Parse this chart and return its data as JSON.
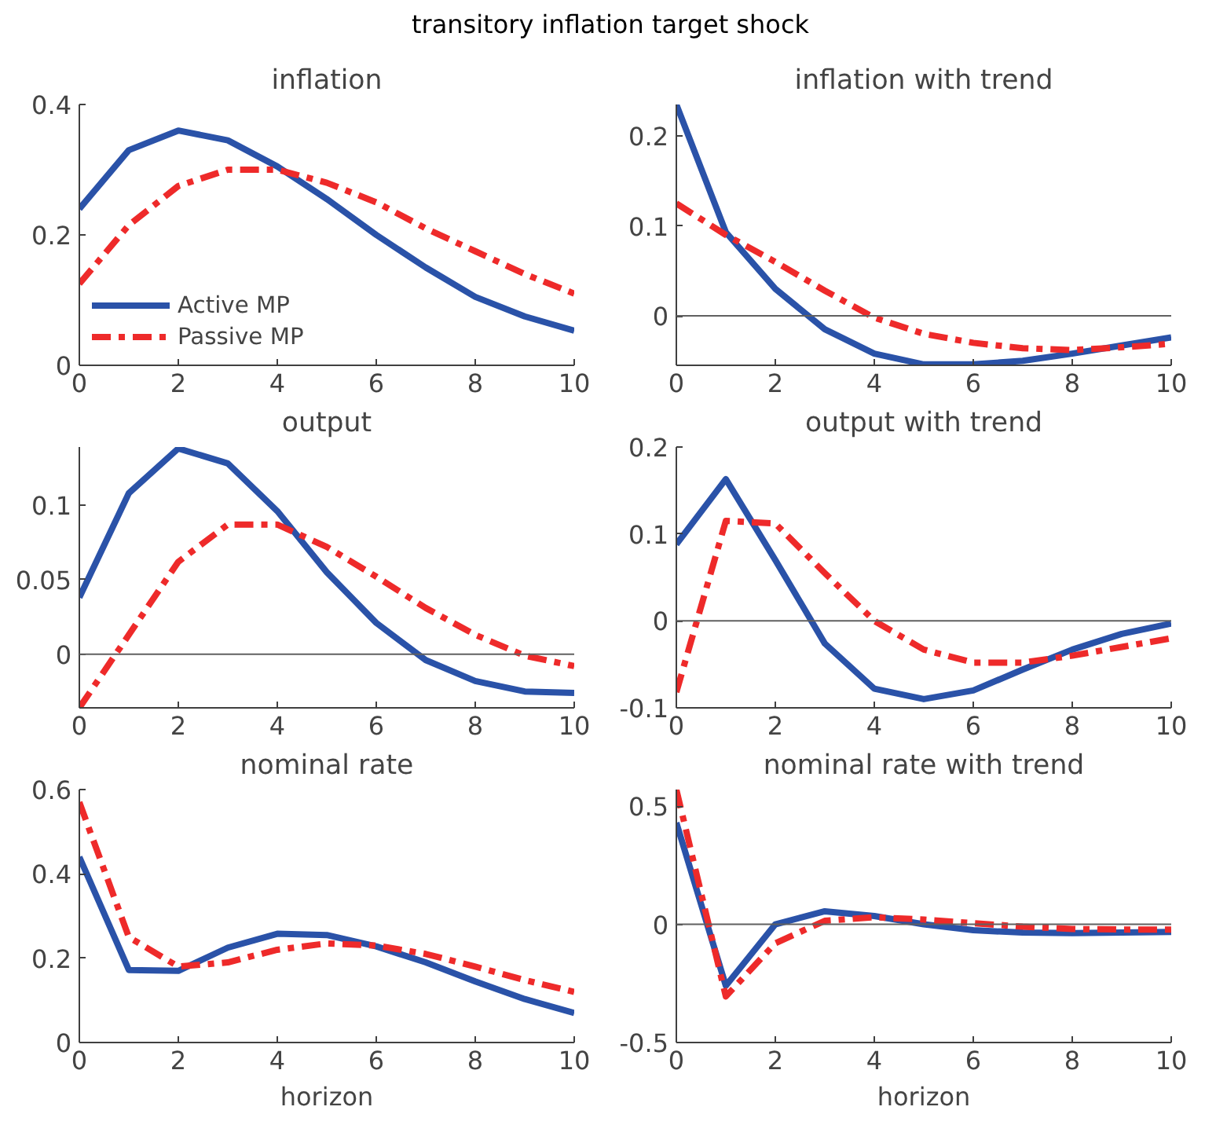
{
  "chart_data": [
    {
      "type": "line",
      "title": "inflation",
      "annotations": [
        "transitory inflation target shock"
      ],
      "x": [
        0,
        1,
        2,
        3,
        4,
        5,
        6,
        7,
        8,
        9,
        10
      ],
      "xlim": [
        0,
        10
      ],
      "xticks": [
        0,
        2,
        4,
        6,
        8,
        10
      ],
      "ylim": [
        0,
        0.4
      ],
      "yticks": [
        0,
        0.2,
        0.4
      ],
      "grid": false,
      "legend": "bottom left",
      "series": [
        {
          "name": "Active MP",
          "color": "#2a52a8",
          "line_style": "solid",
          "values": [
            0.24,
            0.33,
            0.36,
            0.345,
            0.305,
            0.255,
            0.2,
            0.15,
            0.105,
            0.075,
            0.053
          ]
        },
        {
          "name": "Passive MP",
          "color": "#ee2a2a",
          "line_style": "dashed",
          "values": [
            0.125,
            0.215,
            0.275,
            0.3,
            0.3,
            0.28,
            0.25,
            0.21,
            0.175,
            0.14,
            0.11
          ]
        }
      ]
    },
    {
      "type": "line",
      "title": "inflation with trend",
      "x": [
        0,
        1,
        2,
        3,
        4,
        5,
        6,
        7,
        8,
        9,
        10
      ],
      "xlim": [
        0,
        10
      ],
      "xticks": [
        0,
        2,
        4,
        6,
        8,
        10
      ],
      "ylim": [
        -0.055,
        0.235
      ],
      "yticks": [
        0,
        0.1,
        0.2
      ],
      "grid": false,
      "ref_lines": [
        {
          "axis": "y",
          "value": 0,
          "color": "#606060"
        }
      ],
      "series": [
        {
          "color": "#2a52a8",
          "line_style": "solid",
          "values": [
            0.235,
            0.093,
            0.03,
            -0.015,
            -0.042,
            -0.054,
            -0.054,
            -0.05,
            -0.042,
            -0.033,
            -0.024
          ]
        },
        {
          "color": "#ee2a2a",
          "line_style": "dashed",
          "values": [
            0.125,
            0.09,
            0.06,
            0.028,
            -0.002,
            -0.02,
            -0.03,
            -0.036,
            -0.038,
            -0.035,
            -0.031
          ]
        }
      ]
    },
    {
      "type": "line",
      "title": "output",
      "x": [
        0,
        1,
        2,
        3,
        4,
        5,
        6,
        7,
        8,
        9,
        10
      ],
      "xlim": [
        0,
        10
      ],
      "xticks": [
        0,
        2,
        4,
        6,
        8,
        10
      ],
      "ylim": [
        -0.036,
        0.139
      ],
      "yticks": [
        0,
        0.05,
        0.1
      ],
      "grid": false,
      "ref_lines": [
        {
          "axis": "y",
          "value": 0,
          "color": "#606060"
        }
      ],
      "series": [
        {
          "color": "#2a52a8",
          "line_style": "solid",
          "values": [
            0.038,
            0.108,
            0.138,
            0.128,
            0.096,
            0.055,
            0.021,
            -0.004,
            -0.018,
            -0.025,
            -0.026
          ]
        },
        {
          "color": "#ee2a2a",
          "line_style": "dashed",
          "values": [
            -0.036,
            0.013,
            0.062,
            0.087,
            0.087,
            0.072,
            0.052,
            0.031,
            0.013,
            -0.001,
            -0.008
          ]
        }
      ]
    },
    {
      "type": "line",
      "title": "output with trend",
      "x": [
        0,
        1,
        2,
        3,
        4,
        5,
        6,
        7,
        8,
        9,
        10
      ],
      "xlim": [
        0,
        10
      ],
      "xticks": [
        0,
        2,
        4,
        6,
        8,
        10
      ],
      "ylim": [
        -0.1,
        0.2
      ],
      "yticks": [
        -0.1,
        0,
        0.1,
        0.2
      ],
      "grid": false,
      "ref_lines": [
        {
          "axis": "y",
          "value": 0,
          "color": "#606060"
        }
      ],
      "series": [
        {
          "color": "#2a52a8",
          "line_style": "solid",
          "values": [
            0.088,
            0.163,
            0.07,
            -0.026,
            -0.078,
            -0.09,
            -0.08,
            -0.056,
            -0.033,
            -0.015,
            -0.003
          ]
        },
        {
          "color": "#ee2a2a",
          "line_style": "dashed",
          "values": [
            -0.082,
            0.115,
            0.112,
            0.055,
            0.0,
            -0.033,
            -0.048,
            -0.048,
            -0.04,
            -0.03,
            -0.02
          ]
        }
      ]
    },
    {
      "type": "line",
      "title": "nominal rate",
      "xlabel": "horizon",
      "x": [
        0,
        1,
        2,
        3,
        4,
        5,
        6,
        7,
        8,
        9,
        10
      ],
      "xlim": [
        0,
        10
      ],
      "xticks": [
        0,
        2,
        4,
        6,
        8,
        10
      ],
      "ylim": [
        0,
        0.6
      ],
      "yticks": [
        0,
        0.2,
        0.4,
        0.6
      ],
      "grid": false,
      "series": [
        {
          "color": "#2a52a8",
          "line_style": "solid",
          "values": [
            0.44,
            0.172,
            0.17,
            0.225,
            0.258,
            0.255,
            0.228,
            0.19,
            0.145,
            0.103,
            0.07
          ]
        },
        {
          "color": "#ee2a2a",
          "line_style": "dashed",
          "values": [
            0.57,
            0.25,
            0.18,
            0.19,
            0.22,
            0.235,
            0.23,
            0.21,
            0.18,
            0.148,
            0.12
          ]
        }
      ]
    },
    {
      "type": "line",
      "title": "nominal rate with trend",
      "xlabel": "horizon",
      "x": [
        0,
        1,
        2,
        3,
        4,
        5,
        6,
        7,
        8,
        9,
        10
      ],
      "xlim": [
        0,
        10
      ],
      "xticks": [
        0,
        2,
        4,
        6,
        8,
        10
      ],
      "ylim": [
        -0.5,
        0.57
      ],
      "yticks": [
        -0.5,
        0,
        0.5
      ],
      "grid": false,
      "ref_lines": [
        {
          "axis": "y",
          "value": 0,
          "color": "#606060"
        }
      ],
      "series": [
        {
          "color": "#2a52a8",
          "line_style": "solid",
          "values": [
            0.43,
            -0.26,
            0.0,
            0.055,
            0.035,
            0.0,
            -0.025,
            -0.035,
            -0.037,
            -0.035,
            -0.032
          ]
        },
        {
          "color": "#ee2a2a",
          "line_style": "dashed",
          "values": [
            0.57,
            -0.305,
            -0.08,
            0.015,
            0.03,
            0.02,
            0.005,
            -0.01,
            -0.02,
            -0.022,
            -0.022
          ]
        }
      ]
    }
  ]
}
